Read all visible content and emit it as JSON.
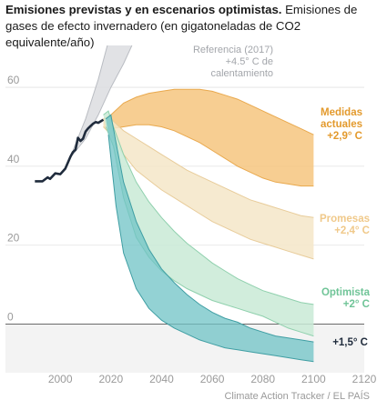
{
  "header": {
    "title": "Emisiones previstas y en escenarios optimistas.",
    "subtitle": "Emisiones de gases de efecto invernadero (en gigatoneladas de CO2 equivalente/año)"
  },
  "source": "Climate Action Tracker / EL PAÍS",
  "chart_data": {
    "type": "area",
    "xlim": [
      1987,
      2120
    ],
    "ylim": [
      -10,
      66
    ],
    "x_ticks": [
      "2000",
      "2020",
      "2040",
      "2060",
      "2080",
      "2100",
      "2120"
    ],
    "y_ticks": [
      "0",
      "20",
      "40",
      "60"
    ],
    "grid": true,
    "legend": "inline labels on right",
    "historical": {
      "color": "#1f2b3c",
      "points": [
        [
          1990,
          36.2
        ],
        [
          1993,
          36.2
        ],
        [
          1995,
          37.2
        ],
        [
          1996,
          36.8
        ],
        [
          1998,
          38.2
        ],
        [
          2000,
          38.0
        ],
        [
          2002,
          39.4
        ],
        [
          2004,
          42.4
        ],
        [
          2005,
          43.6
        ],
        [
          2006,
          44.2
        ],
        [
          2007,
          47.2
        ],
        [
          2008,
          46.4
        ],
        [
          2009,
          47.0
        ],
        [
          2010,
          48.8
        ],
        [
          2011,
          49.6
        ],
        [
          2012,
          50.2
        ],
        [
          2013,
          50.8
        ],
        [
          2014,
          51.2
        ],
        [
          2015,
          51.0
        ],
        [
          2016,
          51.4
        ],
        [
          2017,
          51.8
        ]
      ]
    },
    "series": [
      {
        "key": "reference",
        "label": "Referencia (2017)",
        "sublabel": "+4.5° C de calentamiento",
        "fill": "#dcdde0",
        "stroke": "#b9bcc2",
        "label_color": "#a3a6ab",
        "upper": [
          [
            2005,
            44
          ],
          [
            2010,
            52
          ],
          [
            2015,
            62
          ],
          [
            2020,
            74
          ],
          [
            2025,
            82
          ],
          [
            2030,
            90
          ],
          [
            2035,
            97
          ],
          [
            2040,
            104
          ],
          [
            2045,
            110
          ],
          [
            2050,
            116
          ]
        ],
        "lower": [
          [
            2050,
            88
          ],
          [
            2045,
            85
          ],
          [
            2040,
            82
          ],
          [
            2035,
            78
          ],
          [
            2030,
            73
          ],
          [
            2025,
            66
          ],
          [
            2020,
            60
          ],
          [
            2015,
            53
          ],
          [
            2010,
            47
          ],
          [
            2005,
            43
          ]
        ]
      },
      {
        "key": "current",
        "label": "Medidas actuales",
        "sublabel": "+2,9° C",
        "fill": "#f6c67f",
        "stroke": "#e9a94e",
        "label_color": "#e39a2d",
        "upper": [
          [
            2017,
            52
          ],
          [
            2020,
            53
          ],
          [
            2025,
            56
          ],
          [
            2030,
            57.5
          ],
          [
            2035,
            58.5
          ],
          [
            2040,
            59
          ],
          [
            2045,
            59.5
          ],
          [
            2050,
            59.5
          ],
          [
            2055,
            59.5
          ],
          [
            2060,
            59
          ],
          [
            2065,
            58
          ],
          [
            2070,
            57
          ],
          [
            2075,
            55.5
          ],
          [
            2080,
            54
          ],
          [
            2085,
            52.5
          ],
          [
            2090,
            51
          ],
          [
            2095,
            49.5
          ],
          [
            2100,
            48
          ]
        ],
        "lower": [
          [
            2100,
            35
          ],
          [
            2095,
            35
          ],
          [
            2090,
            35.5
          ],
          [
            2085,
            36
          ],
          [
            2080,
            37
          ],
          [
            2075,
            38.5
          ],
          [
            2070,
            40
          ],
          [
            2065,
            42
          ],
          [
            2060,
            44
          ],
          [
            2055,
            46
          ],
          [
            2050,
            47.5
          ],
          [
            2045,
            49
          ],
          [
            2040,
            50
          ],
          [
            2035,
            50.5
          ],
          [
            2030,
            50.5
          ],
          [
            2025,
            50
          ],
          [
            2020,
            49.5
          ],
          [
            2017,
            50
          ]
        ]
      },
      {
        "key": "pledges",
        "label": "Promesas",
        "sublabel": "+2,4° C",
        "fill": "#f5e6c8",
        "stroke": "#e8cc9a",
        "label_color": "#f0c98a",
        "upper": [
          [
            2017,
            52
          ],
          [
            2020,
            52
          ],
          [
            2025,
            49
          ],
          [
            2030,
            47
          ],
          [
            2035,
            45
          ],
          [
            2040,
            43
          ],
          [
            2045,
            41
          ],
          [
            2050,
            39
          ],
          [
            2055,
            37.5
          ],
          [
            2060,
            36
          ],
          [
            2065,
            34.5
          ],
          [
            2070,
            33
          ],
          [
            2075,
            31.5
          ],
          [
            2080,
            30.5
          ],
          [
            2085,
            29.5
          ],
          [
            2090,
            28.5
          ],
          [
            2095,
            27.5
          ],
          [
            2100,
            27
          ]
        ],
        "lower": [
          [
            2100,
            16.5
          ],
          [
            2095,
            17.5
          ],
          [
            2090,
            18.5
          ],
          [
            2085,
            19.5
          ],
          [
            2080,
            20.5
          ],
          [
            2075,
            21.5
          ],
          [
            2070,
            23
          ],
          [
            2065,
            24.5
          ],
          [
            2060,
            26
          ],
          [
            2055,
            28
          ],
          [
            2050,
            30
          ],
          [
            2045,
            32
          ],
          [
            2040,
            34
          ],
          [
            2035,
            36.5
          ],
          [
            2030,
            39
          ],
          [
            2025,
            43
          ],
          [
            2020,
            48
          ],
          [
            2017,
            50
          ]
        ]
      },
      {
        "key": "optimistic",
        "label": "Optimista",
        "sublabel": "+2° C",
        "fill": "#c9ead6",
        "stroke": "#8fd0ad",
        "label_color": "#6fc497",
        "upper": [
          [
            2017,
            53
          ],
          [
            2019,
            54
          ],
          [
            2021,
            50
          ],
          [
            2025,
            43
          ],
          [
            2030,
            36
          ],
          [
            2035,
            31
          ],
          [
            2040,
            27
          ],
          [
            2045,
            23.5
          ],
          [
            2050,
            20.5
          ],
          [
            2055,
            18
          ],
          [
            2060,
            15.5
          ],
          [
            2065,
            13.5
          ],
          [
            2070,
            11.5
          ],
          [
            2075,
            10
          ],
          [
            2080,
            8.5
          ],
          [
            2085,
            7.5
          ],
          [
            2090,
            6.5
          ],
          [
            2095,
            5.5
          ],
          [
            2100,
            5
          ]
        ],
        "lower": [
          [
            2100,
            -3
          ],
          [
            2095,
            -2
          ],
          [
            2090,
            -1
          ],
          [
            2085,
            0.5
          ],
          [
            2080,
            2
          ],
          [
            2075,
            3
          ],
          [
            2070,
            4
          ],
          [
            2065,
            5
          ],
          [
            2060,
            6
          ],
          [
            2055,
            7.5
          ],
          [
            2050,
            9
          ],
          [
            2045,
            11
          ],
          [
            2040,
            13.5
          ],
          [
            2035,
            17
          ],
          [
            2030,
            22
          ],
          [
            2025,
            32
          ],
          [
            2021,
            45
          ],
          [
            2018,
            50
          ]
        ]
      },
      {
        "key": "onefive",
        "label": "+1,5° C",
        "sublabel": "",
        "fill": "#6fc3c5",
        "stroke": "#3f9ea3",
        "label_color": "#1f2b3c",
        "upper": [
          [
            2018,
            52
          ],
          [
            2020,
            53
          ],
          [
            2022,
            46
          ],
          [
            2025,
            36
          ],
          [
            2030,
            26
          ],
          [
            2035,
            19
          ],
          [
            2040,
            14
          ],
          [
            2045,
            10.5
          ],
          [
            2050,
            7.5
          ],
          [
            2055,
            5
          ],
          [
            2060,
            3
          ],
          [
            2065,
            1.5
          ],
          [
            2070,
            0.5
          ],
          [
            2075,
            -1
          ],
          [
            2080,
            -2
          ],
          [
            2085,
            -3
          ],
          [
            2090,
            -3.5
          ],
          [
            2095,
            -4
          ],
          [
            2100,
            -4.5
          ]
        ],
        "lower": [
          [
            2100,
            -9.5
          ],
          [
            2095,
            -9
          ],
          [
            2090,
            -8.5
          ],
          [
            2085,
            -8
          ],
          [
            2080,
            -7.5
          ],
          [
            2075,
            -7
          ],
          [
            2070,
            -6.5
          ],
          [
            2065,
            -6
          ],
          [
            2060,
            -5
          ],
          [
            2055,
            -4
          ],
          [
            2050,
            -2.5
          ],
          [
            2045,
            -1
          ],
          [
            2040,
            1
          ],
          [
            2035,
            4
          ],
          [
            2030,
            9
          ],
          [
            2025,
            18
          ],
          [
            2022,
            30
          ],
          [
            2019,
            48
          ]
        ]
      }
    ]
  }
}
